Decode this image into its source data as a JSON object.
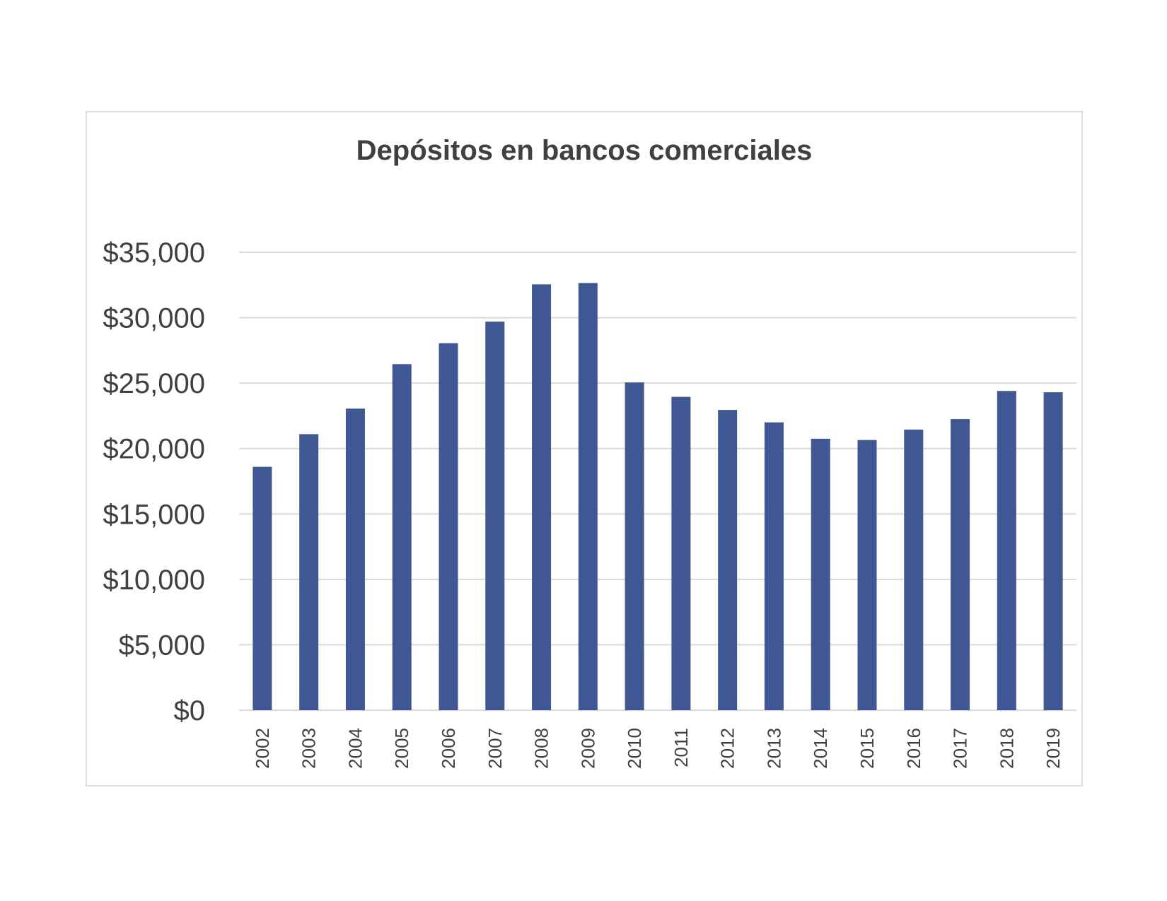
{
  "chart_data": {
    "type": "bar",
    "title": "Depósitos en bancos comerciales",
    "xlabel": "",
    "ylabel": "",
    "categories": [
      "2002",
      "2003",
      "2004",
      "2005",
      "2006",
      "2007",
      "2008",
      "2009",
      "2010",
      "2011",
      "2012",
      "2013",
      "2014",
      "2015",
      "2016",
      "2017",
      "2018",
      "2019"
    ],
    "values": [
      18600,
      21100,
      23050,
      26450,
      28050,
      29700,
      32550,
      32650,
      25050,
      23950,
      22950,
      22000,
      20750,
      20650,
      21450,
      22250,
      24400,
      24300
    ],
    "ylim": [
      0,
      35000
    ],
    "yticks": [
      0,
      5000,
      10000,
      15000,
      20000,
      25000,
      30000,
      35000
    ],
    "ytick_labels": [
      "$0",
      "$5,000",
      "$10,000",
      "$15,000",
      "$20,000",
      "$25,000",
      "$30,000",
      "$35,000"
    ],
    "grid": true,
    "legend": "none",
    "bar_color": "#3f5794"
  }
}
